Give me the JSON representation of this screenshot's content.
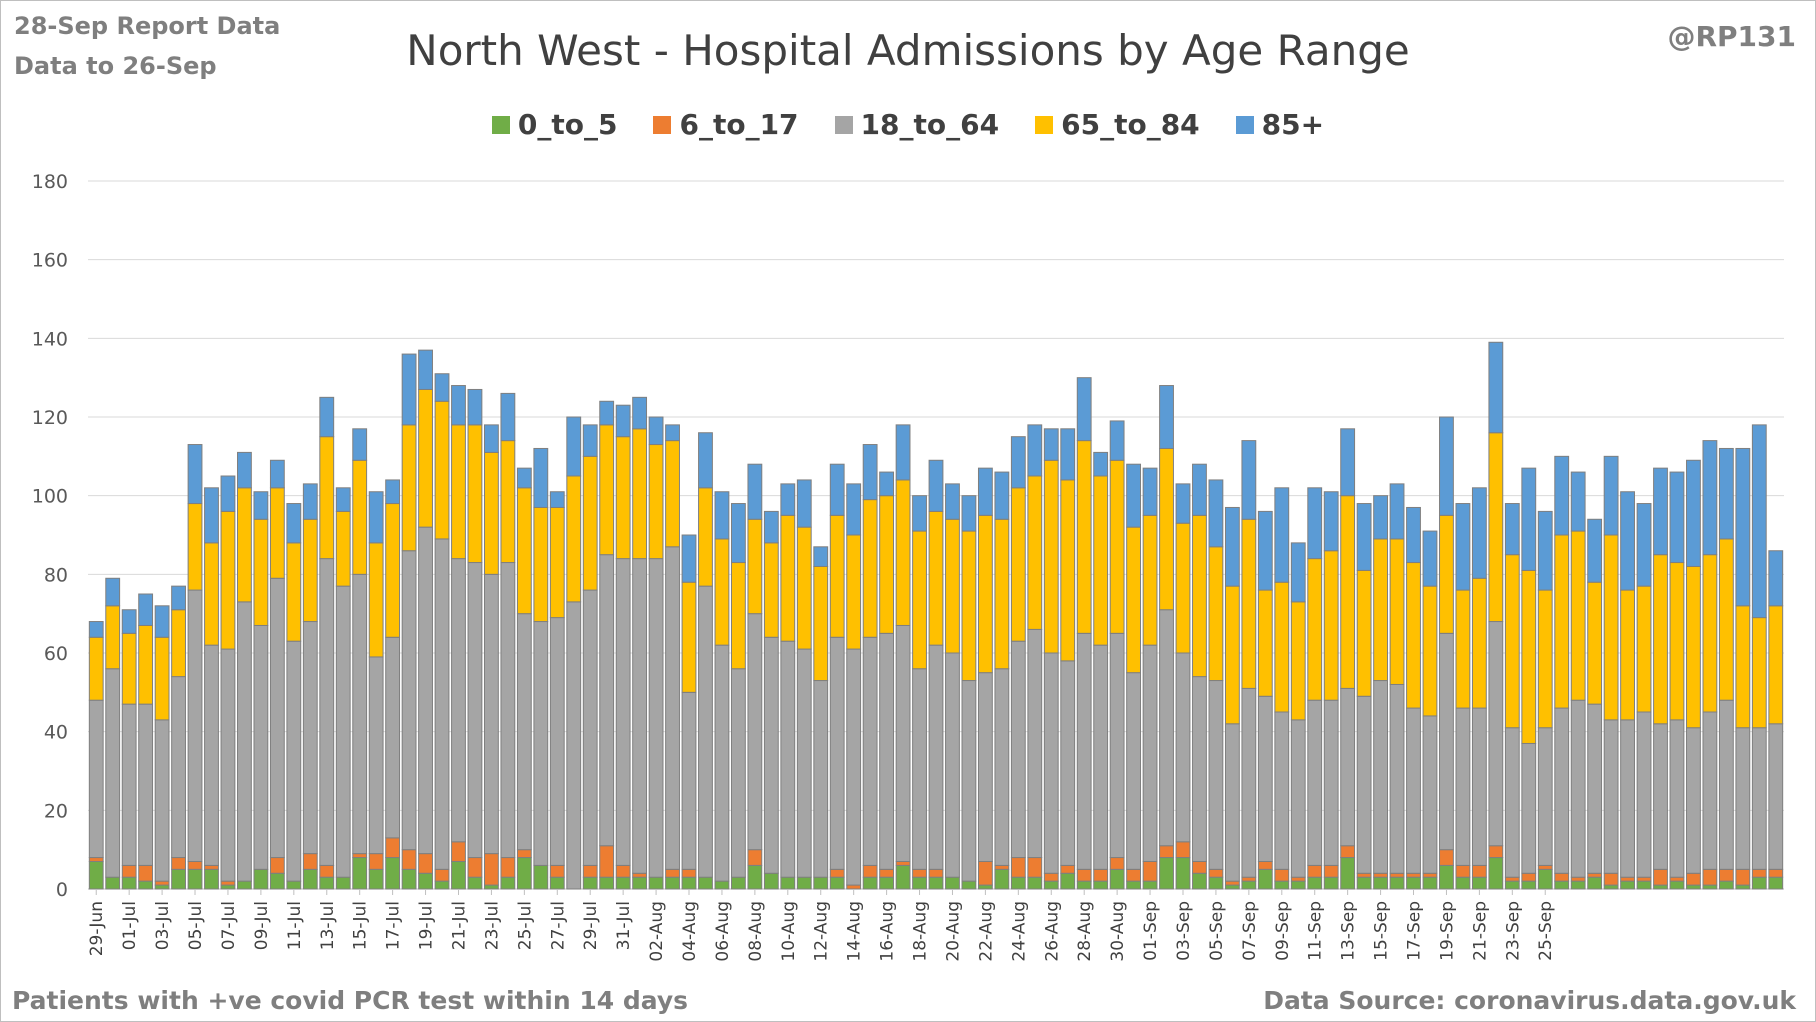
{
  "header": {
    "report_line": "28-Sep Report Data",
    "data_line": "Data to 26-Sep",
    "author": "@RP131"
  },
  "footer": {
    "note": "Patients with  +ve covid PCR test within 14 days",
    "source": "Data Source: coronavirus.data.gov.uk"
  },
  "colors": {
    "0_to_5": "#70ad47",
    "6_to_17": "#ed7d31",
    "18_to_64": "#a5a5a5",
    "65_to_84": "#ffc000",
    "85+": "#5b9bd5",
    "bar_edge": "#7f7f7f",
    "grid": "#d9d9d9"
  },
  "chart_data": {
    "type": "bar",
    "stacked": true,
    "title": "North West - Hospital Admissions by Age Range",
    "xlabel": "",
    "ylabel": "",
    "ylim": [
      0,
      180
    ],
    "yticks": [
      0,
      20,
      40,
      60,
      80,
      100,
      120,
      140,
      160,
      180
    ],
    "grid": true,
    "legend_position": "top",
    "x_tick_labels": [
      "29-Jun",
      "01-Jul",
      "03-Jul",
      "05-Jul",
      "07-Jul",
      "09-Jul",
      "11-Jul",
      "13-Jul",
      "15-Jul",
      "17-Jul",
      "19-Jul",
      "21-Jul",
      "23-Jul",
      "25-Jul",
      "27-Jul",
      "29-Jul",
      "31-Jul",
      "02-Aug",
      "04-Aug",
      "06-Aug",
      "08-Aug",
      "10-Aug",
      "12-Aug",
      "14-Aug",
      "16-Aug",
      "18-Aug",
      "20-Aug",
      "22-Aug",
      "24-Aug",
      "26-Aug",
      "28-Aug",
      "30-Aug",
      "01-Sep",
      "03-Sep",
      "05-Sep",
      "07-Sep",
      "09-Sep",
      "11-Sep",
      "13-Sep",
      "15-Sep",
      "17-Sep",
      "19-Sep",
      "21-Sep",
      "23-Sep",
      "25-Sep"
    ],
    "series": [
      {
        "name": "0_to_5",
        "color": "#70ad47",
        "values": [
          7,
          3,
          3,
          2,
          1,
          5,
          5,
          5,
          1,
          2,
          5,
          4,
          2,
          5,
          3,
          3,
          8,
          5,
          8,
          5,
          4,
          2,
          7,
          3,
          1,
          3,
          8,
          6,
          3,
          0,
          3,
          3,
          3,
          3,
          3,
          3,
          3,
          3,
          2,
          3,
          6,
          4,
          3,
          3,
          3,
          3,
          0,
          3,
          3,
          6,
          3,
          3,
          3,
          2,
          1,
          5,
          3,
          3,
          2,
          4,
          2,
          2,
          5,
          2,
          2,
          8,
          8,
          4,
          3,
          1,
          2,
          5,
          2,
          2,
          3,
          3,
          8,
          3,
          3,
          3,
          3,
          3,
          6,
          3,
          3,
          8,
          2,
          2,
          5,
          2,
          2,
          3,
          1,
          2,
          2,
          1,
          2,
          1,
          1,
          2,
          1,
          3,
          3
        ]
      },
      {
        "name": "6_to_17",
        "color": "#ed7d31",
        "values": [
          1,
          0,
          3,
          4,
          1,
          3,
          2,
          1,
          1,
          0,
          0,
          4,
          0,
          4,
          3,
          0,
          1,
          4,
          5,
          5,
          5,
          3,
          5,
          5,
          8,
          5,
          2,
          0,
          3,
          0,
          3,
          8,
          3,
          1,
          0,
          2,
          2,
          0,
          0,
          0,
          4,
          0,
          0,
          0,
          0,
          2,
          1,
          3,
          2,
          1,
          2,
          2,
          0,
          0,
          6,
          1,
          5,
          5,
          2,
          2,
          3,
          3,
          3,
          3,
          5,
          3,
          4,
          3,
          2,
          1,
          1,
          2,
          3,
          1,
          3,
          3,
          3,
          1,
          1,
          1,
          1,
          1,
          4,
          3,
          3,
          3,
          1,
          2,
          1,
          2,
          1,
          1,
          3,
          1,
          1,
          4,
          1,
          3,
          4,
          3,
          4,
          2,
          2
        ]
      },
      {
        "name": "18_to_64",
        "color": "#a5a5a5",
        "values": [
          40,
          53,
          41,
          41,
          41,
          46,
          69,
          56,
          59,
          71,
          62,
          71,
          61,
          59,
          78,
          74,
          71,
          50,
          51,
          76,
          83,
          84,
          72,
          75,
          71,
          75,
          60,
          62,
          63,
          73,
          70,
          74,
          78,
          80,
          81,
          82,
          45,
          74,
          60,
          53,
          60,
          60,
          60,
          58,
          50,
          59,
          60,
          58,
          60,
          60,
          51,
          57,
          57,
          51,
          48,
          50,
          55,
          58,
          56,
          52,
          60,
          57,
          57,
          50,
          55,
          60,
          48,
          47,
          48,
          40,
          48,
          42,
          40,
          40,
          42,
          42,
          40,
          45,
          49,
          48,
          42,
          40,
          55,
          40,
          40,
          57,
          38,
          33,
          35,
          42,
          45,
          43,
          39,
          40,
          42,
          37,
          40,
          37,
          40,
          43,
          36,
          36,
          37
        ]
      },
      {
        "name": "65_to_84",
        "color": "#ffc000",
        "values": [
          16,
          16,
          18,
          20,
          21,
          17,
          22,
          26,
          35,
          29,
          27,
          23,
          25,
          26,
          31,
          19,
          29,
          29,
          34,
          32,
          35,
          35,
          34,
          35,
          31,
          31,
          32,
          29,
          28,
          32,
          34,
          33,
          31,
          33,
          29,
          27,
          28,
          25,
          27,
          27,
          24,
          24,
          32,
          31,
          29,
          31,
          29,
          35,
          35,
          37,
          35,
          34,
          34,
          38,
          40,
          38,
          39,
          39,
          49,
          46,
          49,
          43,
          44,
          37,
          33,
          41,
          33,
          41,
          34,
          35,
          43,
          27,
          33,
          30,
          36,
          38,
          49,
          32,
          36,
          37,
          37,
          33,
          30,
          30,
          33,
          48,
          44,
          44,
          35,
          44,
          43,
          31,
          47,
          33,
          32,
          43,
          40,
          41,
          40,
          41,
          31,
          28,
          30
        ]
      },
      {
        "name": "85+",
        "color": "#5b9bd5",
        "values": [
          4,
          7,
          6,
          8,
          8,
          6,
          15,
          14,
          9,
          9,
          7,
          7,
          10,
          9,
          10,
          6,
          8,
          13,
          6,
          18,
          10,
          7,
          10,
          9,
          7,
          12,
          5,
          15,
          4,
          15,
          8,
          6,
          8,
          8,
          7,
          4,
          12,
          14,
          12,
          15,
          14,
          8,
          8,
          12,
          5,
          13,
          13,
          14,
          6,
          14,
          9,
          13,
          9,
          9,
          12,
          12,
          13,
          13,
          8,
          13,
          16,
          6,
          10,
          16,
          12,
          16,
          10,
          13,
          17,
          20,
          20,
          20,
          24,
          15,
          18,
          15,
          17,
          17,
          11,
          14,
          14,
          14,
          25,
          22,
          23,
          23,
          13,
          26,
          20,
          20,
          15,
          16,
          20,
          25,
          21,
          22,
          23,
          27,
          29,
          23,
          40,
          49,
          14
        ]
      }
    ]
  }
}
